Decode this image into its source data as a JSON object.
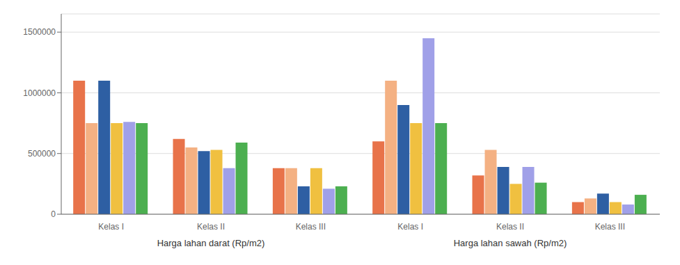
{
  "chart_data": {
    "type": "bar",
    "categories": [
      "Kelas I",
      "Kelas II",
      "Kelas III",
      "Kelas I",
      "Kelas II",
      "Kelas III"
    ],
    "series": [
      {
        "color": "#E8734A",
        "values": [
          1100000,
          620000,
          380000,
          600000,
          320000,
          100000
        ]
      },
      {
        "color": "#F4B183",
        "values": [
          750000,
          550000,
          380000,
          1100000,
          530000,
          130000
        ]
      },
      {
        "color": "#2E5FA3",
        "values": [
          1100000,
          520000,
          230000,
          900000,
          390000,
          170000
        ]
      },
      {
        "color": "#F0C040",
        "values": [
          750000,
          530000,
          380000,
          750000,
          250000,
          100000
        ]
      },
      {
        "color": "#A0A0E8",
        "values": [
          760000,
          380000,
          210000,
          1450000,
          390000,
          80000
        ]
      },
      {
        "color": "#4CAF50",
        "values": [
          750000,
          590000,
          230000,
          750000,
          260000,
          160000
        ]
      }
    ],
    "annotations": [
      "Harga lahan darat (Rp/m2)",
      "Harga lahan sawah (Rp/m2)"
    ],
    "ylim": [
      0,
      1650000
    ],
    "yticks": [
      0,
      500000,
      1000000,
      1500000
    ],
    "grid": true
  }
}
